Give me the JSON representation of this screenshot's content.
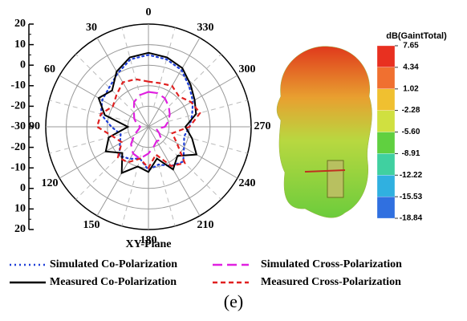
{
  "chart_data": {
    "type": "polar",
    "x": [
      0,
      15,
      30,
      45,
      60,
      75,
      90,
      105,
      120,
      135,
      150,
      165,
      180,
      195,
      210,
      225,
      240,
      255,
      270,
      285,
      300,
      315,
      330,
      345
    ],
    "ylim": [
      -30,
      20
    ],
    "yticks": [
      20,
      10,
      0,
      -10,
      -20,
      -30
    ],
    "angle_ticks": [
      0,
      30,
      60,
      90,
      120,
      150,
      180,
      210,
      240,
      270,
      300,
      330
    ],
    "xlabel": "XY-Plane",
    "series": [
      {
        "name": "Simulated Co-Polarization",
        "color": "#1f3fd8",
        "style": "dotted",
        "values": [
          5,
          4,
          0,
          -3,
          -4,
          -6,
          -12,
          -16,
          -14,
          -10,
          -12,
          -14,
          -9,
          -11,
          -8,
          -6,
          -10,
          -12,
          -10,
          -8,
          -5,
          -2,
          2,
          4
        ]
      },
      {
        "name": "Measured Co-Polarization",
        "color": "#000000",
        "style": "solid",
        "values": [
          6,
          5,
          1,
          -5,
          -2,
          -8,
          -20,
          -10,
          -6,
          -12,
          -4,
          -10,
          -8,
          -14,
          -6,
          -10,
          -3,
          -8,
          -12,
          -6,
          -4,
          -1,
          3,
          5
        ]
      },
      {
        "name": "Simulated Cross-Polarization",
        "color": "#e020e0",
        "style": "longdash",
        "values": [
          -13,
          -14,
          -16,
          -20,
          -22,
          -24,
          -26,
          -25,
          -22,
          -18,
          -15,
          -14,
          -17,
          -20,
          -22,
          -21,
          -24,
          -26,
          -22,
          -20,
          -18,
          -16,
          -14,
          -13
        ]
      },
      {
        "name": "Measured Cross-Polarization",
        "color": "#e02020",
        "style": "dashed",
        "values": [
          -8,
          -6,
          -5,
          -8,
          -10,
          -6,
          -5,
          -12,
          -15,
          -9,
          -10,
          -14,
          -10,
          -16,
          -8,
          -5,
          -14,
          -18,
          -10,
          -4,
          -6,
          -9,
          -7,
          -8
        ]
      }
    ]
  },
  "colorbar": {
    "title": "dB(GaintTotal)",
    "ticks": [
      7.65,
      4.34,
      1.02,
      -2.28,
      -5.6,
      -8.91,
      -12.22,
      -15.53,
      -18.84
    ],
    "tick_labels": [
      "7.65",
      "4.34",
      "1.02",
      "-2.28",
      "-5.60",
      "-8.91",
      "-12.22",
      "-15.53",
      "-18.84"
    ]
  },
  "caption": "(e)"
}
